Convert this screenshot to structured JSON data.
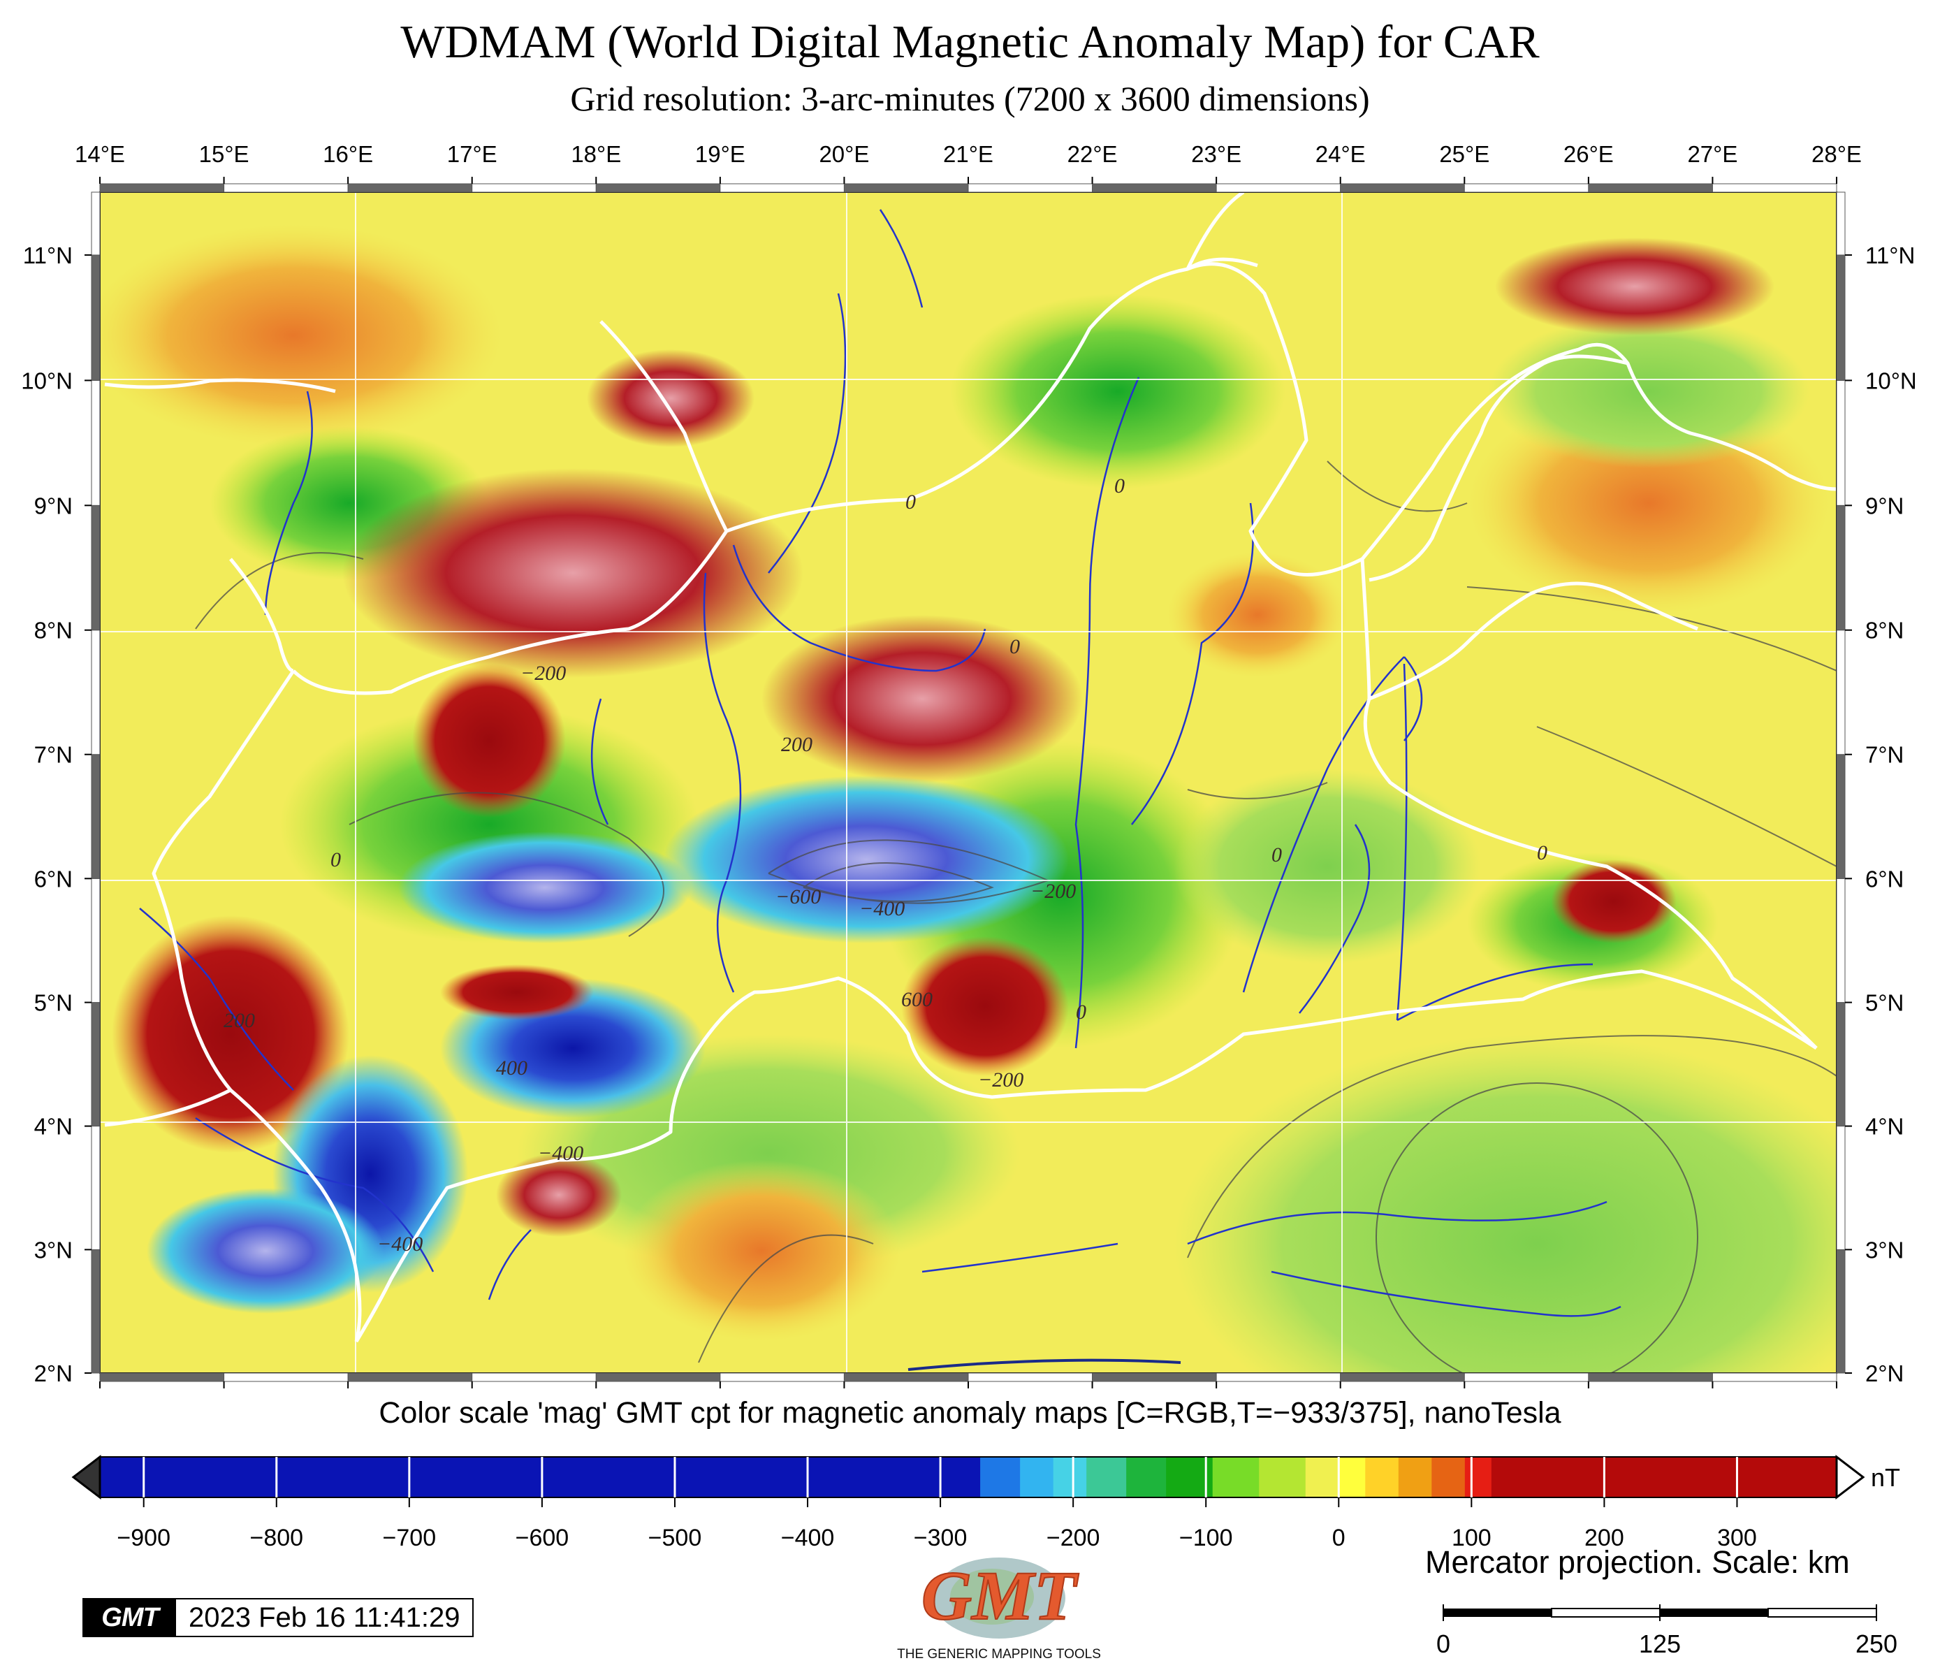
{
  "title": "WDMAM (World Digital Magnetic Anomaly Map) for CAR",
  "subtitle": "Grid resolution: 3-arc-minutes (7200 x 3600 dimensions)",
  "map": {
    "lon_min": 14,
    "lon_max": 28,
    "lat_min": 2,
    "lat_max": 11.5,
    "lon_labels": [
      "14°E",
      "15°E",
      "16°E",
      "17°E",
      "18°E",
      "19°E",
      "20°E",
      "21°E",
      "22°E",
      "23°E",
      "24°E",
      "25°E",
      "26°E",
      "27°E",
      "28°E"
    ],
    "lat_labels": [
      "2°N",
      "3°N",
      "4°N",
      "5°N",
      "6°N",
      "7°N",
      "8°N",
      "9°N",
      "10°N",
      "11°N"
    ],
    "contour_labels": [
      "0",
      "0",
      "0",
      "0",
      "0",
      "0",
      "0",
      "−200",
      "−200",
      "−400",
      "−600",
      "200",
      "200",
      "400",
      "−400",
      "−200",
      "−400",
      "600"
    ]
  },
  "colorbar": {
    "caption": "Color scale 'mag' GMT cpt for magnetic anomaly maps [C=RGB,T=−933/375], nanoTesla",
    "unit": "nT",
    "min": -933,
    "max": 375,
    "ticks": [
      "−900",
      "−800",
      "−700",
      "−600",
      "−500",
      "−400",
      "−300",
      "−200",
      "−100",
      "0",
      "100",
      "200",
      "300"
    ],
    "tick_values": [
      -900,
      -800,
      -700,
      -600,
      -500,
      -400,
      -300,
      -200,
      -100,
      0,
      100,
      200,
      300
    ],
    "stops": [
      {
        "v": -933,
        "c": "#0a14b4"
      },
      {
        "v": -290,
        "c": "#0a14b4"
      },
      {
        "v": -270,
        "c": "#1e78e6"
      },
      {
        "v": -240,
        "c": "#32b4f0"
      },
      {
        "v": -215,
        "c": "#46d2e6"
      },
      {
        "v": -190,
        "c": "#3cc896"
      },
      {
        "v": -160,
        "c": "#1eb43c"
      },
      {
        "v": -130,
        "c": "#14aa14"
      },
      {
        "v": -95,
        "c": "#78dc28"
      },
      {
        "v": -60,
        "c": "#b4e632"
      },
      {
        "v": -25,
        "c": "#f0f050"
      },
      {
        "v": 0,
        "c": "#ffff3c"
      },
      {
        "v": 20,
        "c": "#ffd228"
      },
      {
        "v": 45,
        "c": "#f0a014"
      },
      {
        "v": 70,
        "c": "#e66414"
      },
      {
        "v": 95,
        "c": "#e61e14"
      },
      {
        "v": 115,
        "c": "#b40a0a"
      },
      {
        "v": 375,
        "c": "#aa0a0a"
      }
    ]
  },
  "projection": "Mercator projection. Scale: km",
  "scalebar": {
    "labels": [
      "0",
      "125",
      "250"
    ]
  },
  "timestamp": {
    "logo_text": "GMT",
    "date": "2023 Feb 16 11:41:29"
  },
  "gmt_logo": {
    "text": "GMT",
    "caption": "THE GENERIC MAPPING TOOLS"
  }
}
